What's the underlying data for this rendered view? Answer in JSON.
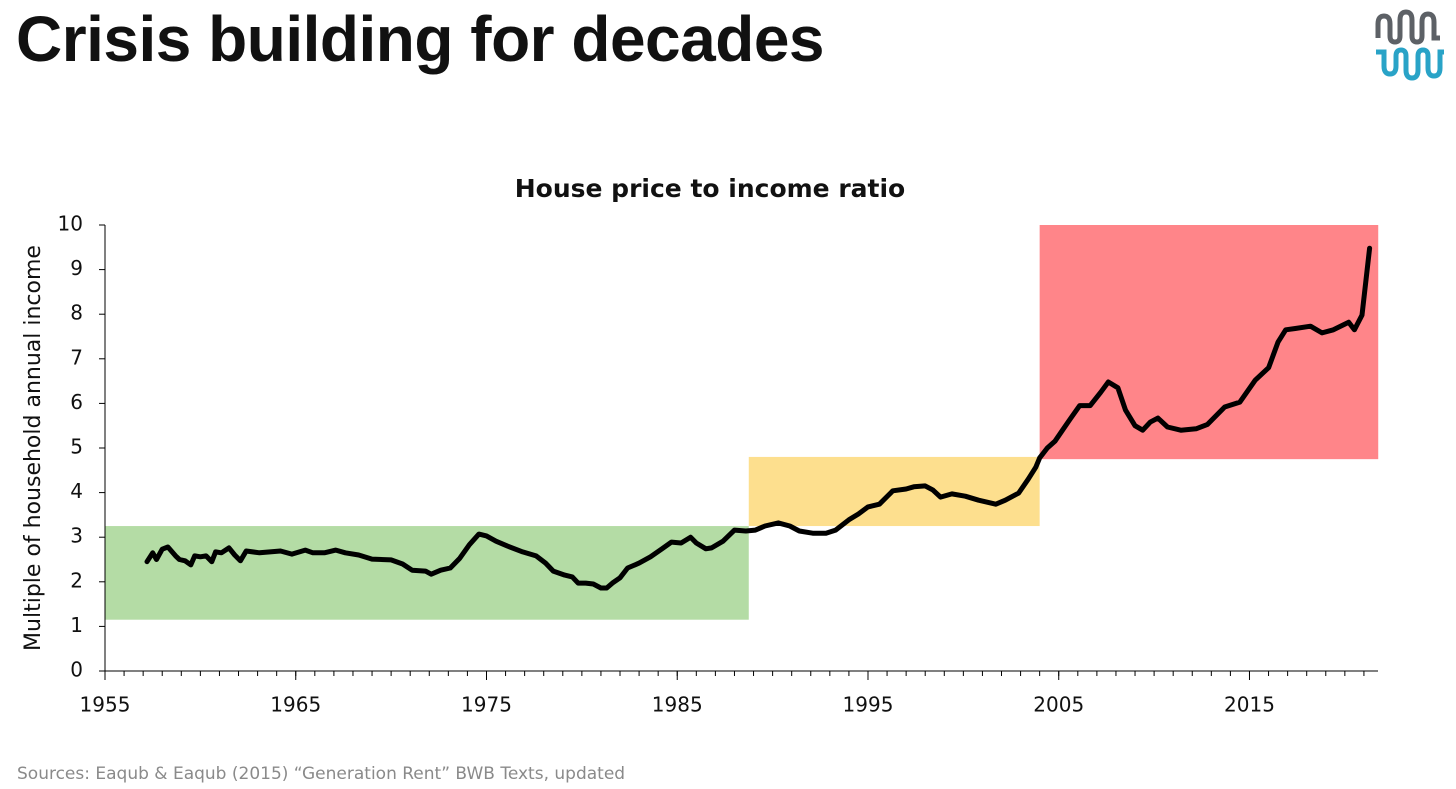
{
  "slide_title": "Crisis building for decades",
  "source": "Sources: Eaqub & Eaqub (2015) “Generation Rent” BWB Texts, updated",
  "chart_data": {
    "type": "line",
    "title": "House price to income ratio",
    "y_label": "Multiple of household annual income",
    "color": "#000000",
    "x": [
      1957.2,
      1957.5,
      1957.7,
      1958.0,
      1958.3,
      1958.7,
      1958.9,
      1959.2,
      1959.5,
      1959.7,
      1960.0,
      1960.3,
      1960.6,
      1960.8,
      1961.1,
      1961.5,
      1961.8,
      1962.1,
      1962.4,
      1963.1,
      1964.2,
      1964.8,
      1965.5,
      1965.9,
      1966.5,
      1967.1,
      1967.6,
      1968.3,
      1969.0,
      1970.0,
      1970.6,
      1971.1,
      1971.8,
      1972.1,
      1972.6,
      1973.1,
      1973.6,
      1974.1,
      1974.6,
      1975.0,
      1975.5,
      1976.1,
      1976.9,
      1977.6,
      1978.1,
      1978.5,
      1979.1,
      1979.5,
      1979.8,
      1980.2,
      1980.6,
      1981.0,
      1981.3,
      1981.6,
      1982.0,
      1982.4,
      1983.0,
      1983.6,
      1984.2,
      1984.7,
      1985.2,
      1985.7,
      1986.0,
      1986.5,
      1986.8,
      1987.4,
      1988.0,
      1988.6,
      1989.1,
      1989.6,
      1990.3,
      1990.9,
      1991.4,
      1992.1,
      1992.8,
      1993.3,
      1994.0,
      1994.5,
      1995.0,
      1995.6,
      1996.3,
      1997.0,
      1997.4,
      1998.0,
      1998.4,
      1998.8,
      1999.4,
      2000.1,
      2000.8,
      2001.7,
      2002.2,
      2002.9,
      2003.4,
      2003.8,
      2004.0,
      2004.4,
      2004.8,
      2005.2,
      2005.6,
      2006.1,
      2006.65,
      2007.2,
      2007.6,
      2008.1,
      2008.5,
      2009.0,
      2009.4,
      2009.8,
      2010.2,
      2010.7,
      2011.4,
      2012.2,
      2012.8,
      2013.7,
      2014.5,
      2015.3,
      2016.0,
      2016.5,
      2016.9,
      2017.4,
      2018.2,
      2018.8,
      2019.4,
      2020.2,
      2020.5,
      2020.9,
      2021.3
    ],
    "values": [
      2.45,
      2.65,
      2.5,
      2.73,
      2.78,
      2.58,
      2.5,
      2.47,
      2.38,
      2.58,
      2.56,
      2.58,
      2.45,
      2.67,
      2.65,
      2.76,
      2.6,
      2.47,
      2.69,
      2.65,
      2.69,
      2.62,
      2.71,
      2.65,
      2.65,
      2.71,
      2.65,
      2.6,
      2.51,
      2.49,
      2.4,
      2.26,
      2.24,
      2.17,
      2.26,
      2.31,
      2.53,
      2.83,
      3.07,
      3.03,
      2.91,
      2.8,
      2.67,
      2.58,
      2.42,
      2.24,
      2.15,
      2.11,
      1.97,
      1.97,
      1.95,
      1.86,
      1.86,
      1.97,
      2.09,
      2.31,
      2.42,
      2.56,
      2.74,
      2.89,
      2.87,
      3.0,
      2.87,
      2.74,
      2.76,
      2.91,
      3.16,
      3.14,
      3.16,
      3.25,
      3.32,
      3.25,
      3.14,
      3.09,
      3.09,
      3.16,
      3.39,
      3.52,
      3.68,
      3.74,
      4.04,
      4.08,
      4.13,
      4.15,
      4.06,
      3.9,
      3.97,
      3.92,
      3.83,
      3.74,
      3.83,
      3.99,
      4.3,
      4.57,
      4.78,
      5.0,
      5.15,
      5.4,
      5.65,
      5.95,
      5.95,
      6.25,
      6.48,
      6.35,
      5.85,
      5.5,
      5.4,
      5.58,
      5.67,
      5.47,
      5.4,
      5.43,
      5.53,
      5.92,
      6.03,
      6.52,
      6.8,
      7.38,
      7.65,
      7.68,
      7.73,
      7.58,
      7.65,
      7.82,
      7.65,
      7.98,
      9.48
    ],
    "bands": [
      {
        "x": [
          1955,
          1988.75
        ],
        "y": [
          1.15,
          3.25
        ],
        "color": "#b4dca5"
      },
      {
        "x": [
          1988.75,
          2004
        ],
        "y": [
          3.25,
          4.8
        ],
        "color": "#fddf8e"
      },
      {
        "x": [
          2004,
          2021.75
        ],
        "y": [
          4.75,
          10
        ],
        "color": "#ff8589"
      }
    ],
    "xlim": [
      1955,
      2022
    ],
    "xticks": [
      1955,
      1965,
      1975,
      1985,
      1995,
      2005,
      2015
    ],
    "x_minor_step": 1,
    "ylim": [
      0,
      10
    ],
    "yticks": [
      0,
      1,
      2,
      3,
      4,
      5,
      6,
      7,
      8,
      9,
      10
    ],
    "grid": false
  }
}
